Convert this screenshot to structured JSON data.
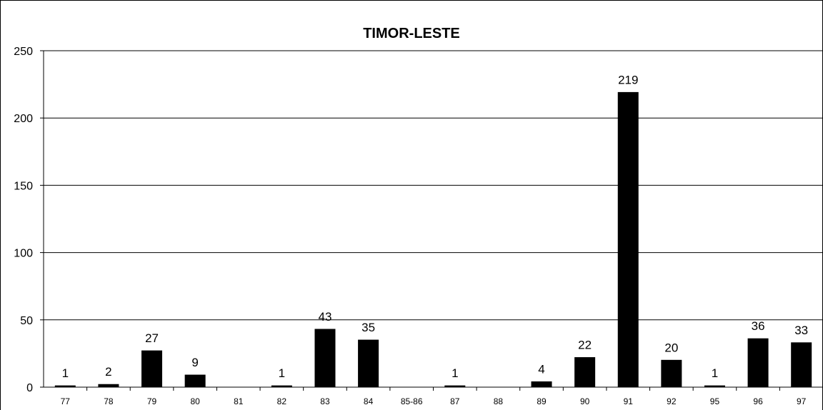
{
  "chart_data": {
    "type": "bar",
    "title": "TIMOR-LESTE",
    "xlabel": "",
    "ylabel": "",
    "categories": [
      "77",
      "78",
      "79",
      "80",
      "81",
      "82",
      "83",
      "84",
      "85-86",
      "87",
      "88",
      "89",
      "90",
      "91",
      "92",
      "95",
      "96",
      "97"
    ],
    "values": [
      1,
      2,
      27,
      9,
      0,
      1,
      43,
      35,
      0,
      1,
      0,
      4,
      22,
      219,
      20,
      1,
      36,
      33
    ],
    "data_labels": [
      "1",
      "2",
      "27",
      "9",
      "",
      "1",
      "43",
      "35",
      "",
      "1",
      "",
      "4",
      "22",
      "219",
      "20",
      "1",
      "36",
      "33"
    ],
    "ylim": [
      0,
      250
    ],
    "yticks": [
      0,
      50,
      100,
      150,
      200,
      250
    ],
    "grid": true,
    "legend": "none",
    "bar_color": "#000000"
  }
}
